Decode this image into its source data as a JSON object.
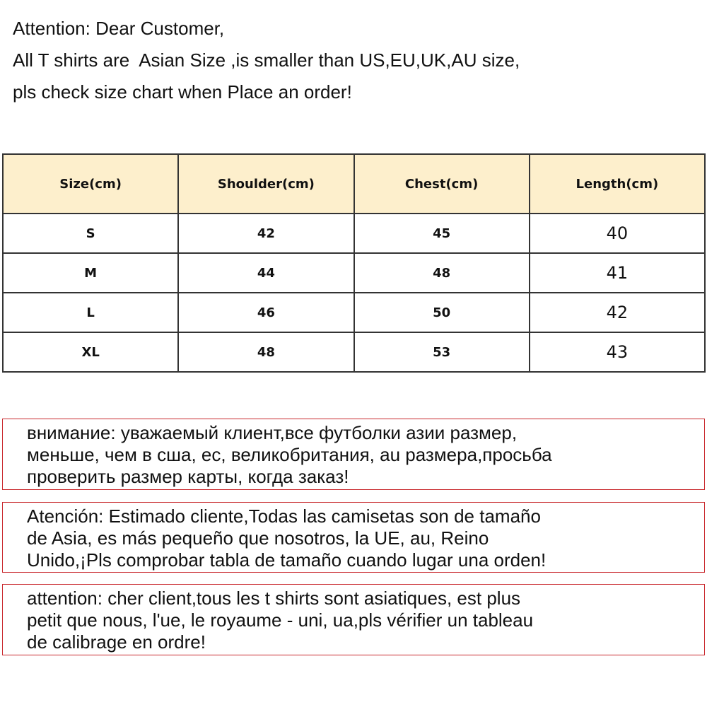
{
  "intro": [
    "Attention: Dear Customer,",
    "All T shirts are  Asian Size ,is smaller than US,EU,UK,AU size,",
    "pls check size chart when Place an order!"
  ],
  "table": {
    "headers": [
      "Size(cm)",
      "Shoulder(cm)",
      "Chest(cm)",
      "Length(cm)"
    ],
    "rows": [
      [
        "S",
        "42",
        "45",
        "40"
      ],
      [
        "M",
        "44",
        "48",
        "41"
      ],
      [
        "L",
        "46",
        "50",
        "42"
      ],
      [
        "XL",
        "48",
        "53",
        "43"
      ]
    ]
  },
  "notices": [
    [
      "внимание: уважаемый клиент,все футболки азии размер,",
      "меньше, чем в сша, ес, великобритания, au размера,просьба",
      "проверить размер карты, когда заказ!"
    ],
    [
      "Atención: Estimado cliente,Todas las camisetas son de tamaño",
      "de Asia, es más pequeño que nosotros, la UE, au, Reino",
      "Unido,¡Pls comprobar tabla de tamaño cuando lugar una orden!"
    ],
    [
      "attention: cher client,tous les t shirts sont asiatiques, est plus",
      "petit que nous, l'ue, le royaume - uni, ua,pls vérifier un tableau",
      "de calibrage en ordre!"
    ]
  ],
  "colors": {
    "header_bg": "#fdefcc",
    "notice_border": "#c9282d"
  }
}
